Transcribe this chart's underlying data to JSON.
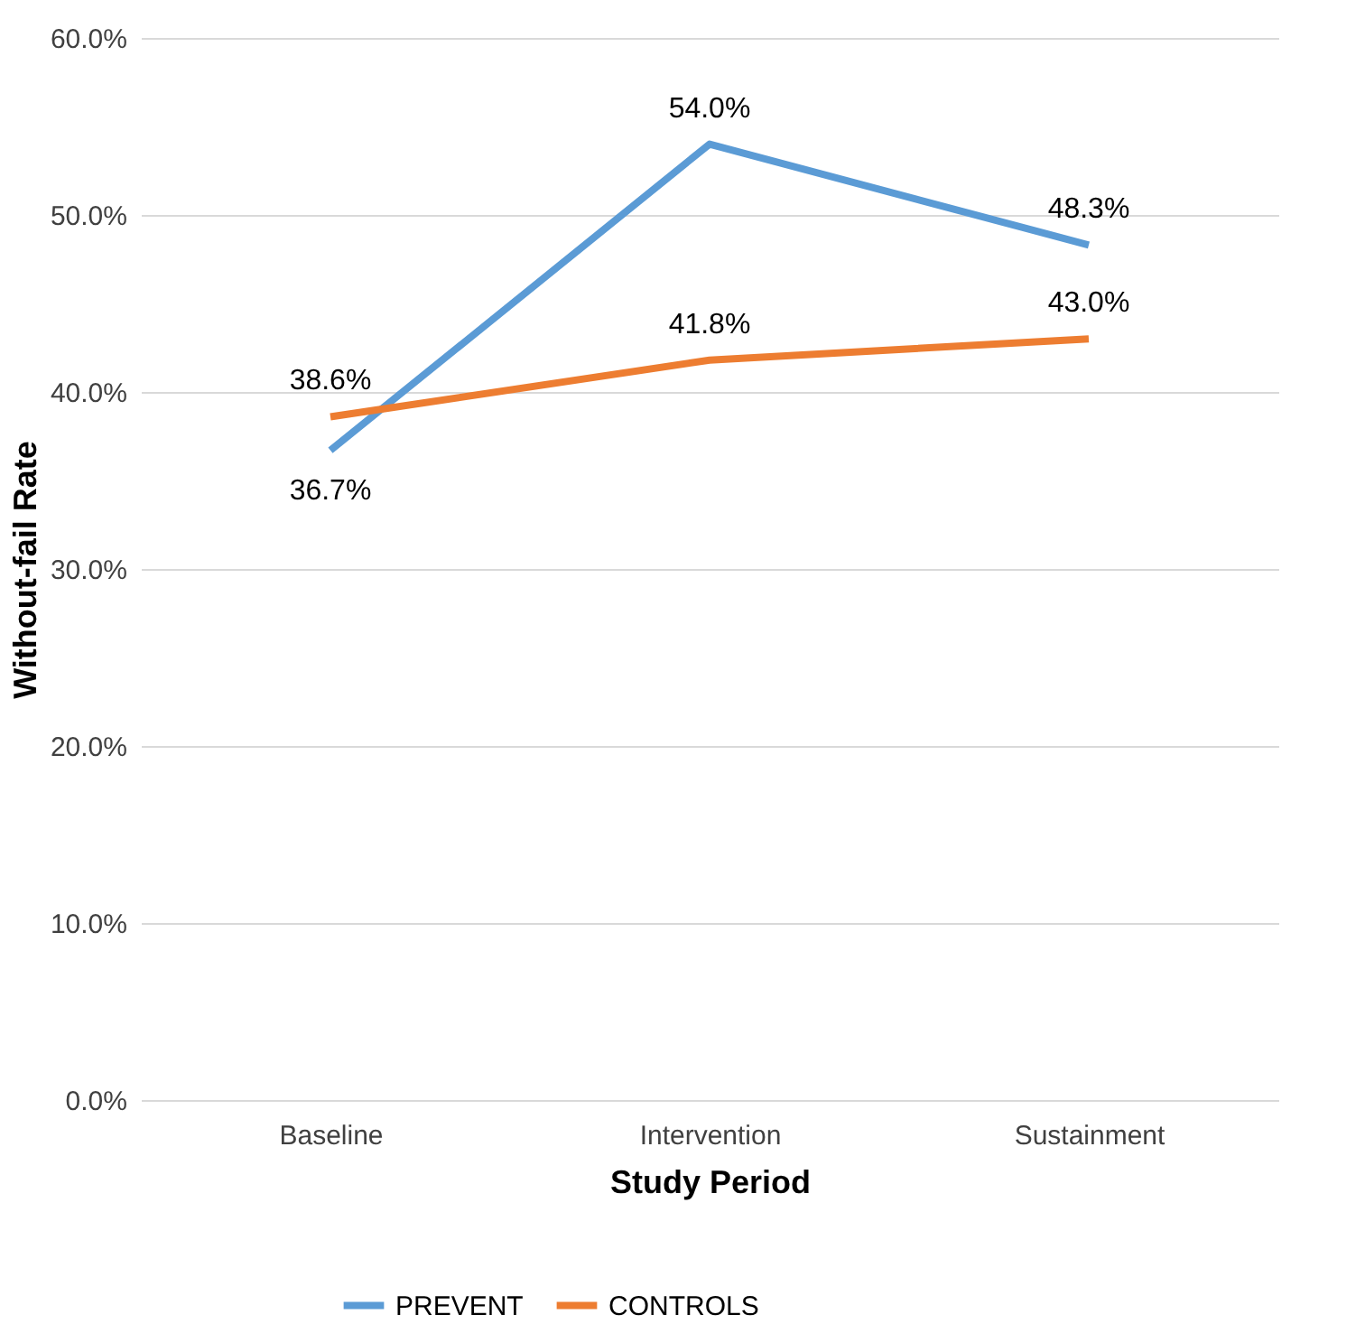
{
  "chart_data": {
    "type": "line",
    "xlabel": "Study Period",
    "ylabel": "Without-fail Rate",
    "categories": [
      "Baseline",
      "Intervention",
      "Sustainment"
    ],
    "series": [
      {
        "name": "PREVENT",
        "color": "#5b9bd5",
        "values": [
          36.7,
          54.0,
          48.3
        ],
        "value_labels": [
          "36.7%",
          "54.0%",
          "48.3%"
        ]
      },
      {
        "name": "CONTROLS",
        "color": "#ed7d31",
        "values": [
          38.6,
          41.8,
          43.0
        ],
        "value_labels": [
          "38.6%",
          "41.8%",
          "43.0%"
        ]
      }
    ],
    "ylim": [
      0,
      60
    ],
    "yticks": [
      {
        "value": 0,
        "label": "0.0%"
      },
      {
        "value": 10,
        "label": "10.0%"
      },
      {
        "value": 20,
        "label": "20.0%"
      },
      {
        "value": 30,
        "label": "30.0%"
      },
      {
        "value": 40,
        "label": "40.0%"
      },
      {
        "value": 50,
        "label": "50.0%"
      },
      {
        "value": 60,
        "label": "60.0%"
      }
    ],
    "grid": "y",
    "legend": "bottom",
    "marker": "none",
    "line_style": "solid"
  }
}
